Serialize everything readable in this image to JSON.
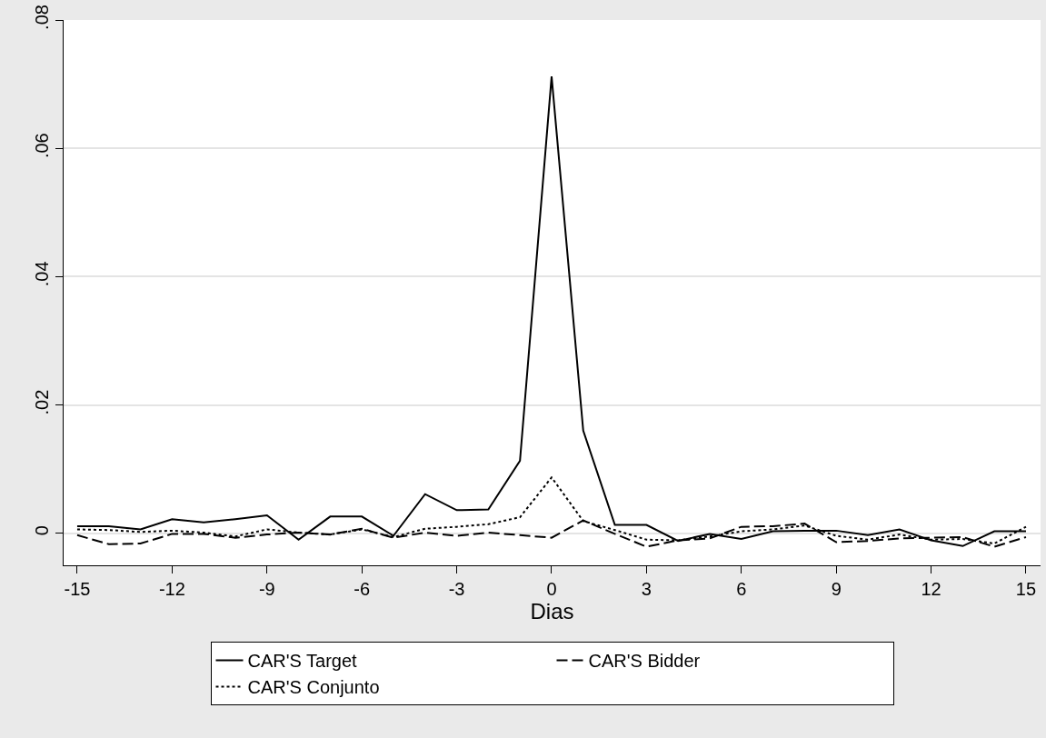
{
  "chart_data": {
    "type": "line",
    "xlabel": "Dias",
    "x": [
      -15,
      -14,
      -13,
      -12,
      -11,
      -10,
      -9,
      -8,
      -7,
      -6,
      -5,
      -4,
      -3,
      -2,
      -1,
      0,
      1,
      2,
      3,
      4,
      5,
      6,
      7,
      8,
      9,
      10,
      11,
      12,
      13,
      14,
      15
    ],
    "series": [
      {
        "name": "CAR'S Target",
        "color": "#000000",
        "line_style": "solid",
        "values": [
          0.0011,
          0.0011,
          0.0006,
          0.0022,
          0.0017,
          0.0022,
          0.0028,
          -0.001,
          0.0026,
          0.0026,
          -0.0004,
          0.0061,
          0.0036,
          0.0037,
          0.0113,
          0.0712,
          0.016,
          0.0013,
          0.0013,
          -0.0012,
          -0.0001,
          -0.0009,
          0.0003,
          0.0004,
          0.0004,
          -0.0003,
          0.0006,
          -0.0011,
          -0.002,
          0.0003,
          0.0003
        ]
      },
      {
        "name": "CAR'S Bidder",
        "color": "#000000",
        "line_style": "dashed",
        "values": [
          -0.0003,
          -0.0017,
          -0.0016,
          -0.0001,
          -0.0001,
          -0.0007,
          -0.0002,
          0.0001,
          -0.0002,
          0.0007,
          -0.0007,
          0.0001,
          -0.0004,
          0.0001,
          -0.0003,
          -0.0007,
          0.002,
          -0.0001,
          -0.0021,
          -0.0011,
          -0.0008,
          0.001,
          0.0011,
          0.0015,
          -0.0014,
          -0.0012,
          -0.0008,
          -0.0007,
          -0.0006,
          -0.0021,
          -0.0006
        ]
      },
      {
        "name": "CAR'S Conjunto",
        "color": "#000000",
        "line_style": "dotted",
        "values": [
          0.0006,
          0.0005,
          0.0002,
          0.0004,
          0.0001,
          -0.0005,
          0.0006,
          0.0001,
          -0.0002,
          0.0006,
          -0.0006,
          0.0007,
          0.001,
          0.0014,
          0.0025,
          0.0087,
          0.0019,
          0.0005,
          -0.001,
          -0.0011,
          -0.0005,
          0.0003,
          0.0006,
          0.0012,
          -0.0004,
          -0.001,
          -0.0002,
          -0.001,
          -0.0009,
          -0.0016,
          0.001
        ]
      }
    ],
    "xlim": [
      -15.43,
      15.46
    ],
    "xticks": [
      -15,
      -12,
      -9,
      -6,
      -3,
      0,
      3,
      6,
      9,
      12,
      15
    ],
    "ylim": [
      -0.005,
      0.08
    ],
    "yticks": [
      {
        "value": 0,
        "label": "0"
      },
      {
        "value": 0.02,
        "label": ".02"
      },
      {
        "value": 0.04,
        "label": ".04"
      },
      {
        "value": 0.06,
        "label": ".06"
      },
      {
        "value": 0.08,
        "label": ".08"
      }
    ],
    "grid": "y",
    "legend": "bottom"
  }
}
